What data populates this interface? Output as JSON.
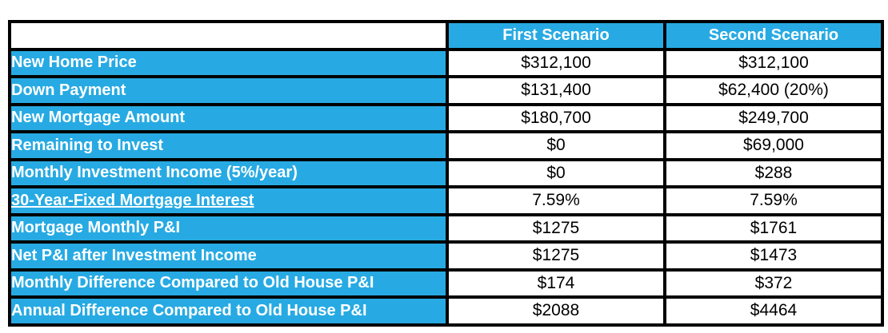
{
  "colors": {
    "accent_blue": "#27AAE3",
    "border_black": "#000000",
    "cell_bg": "#FFFFFF",
    "header_text": "#FFFFFF",
    "value_text": "#000000"
  },
  "chart_data": {
    "type": "table",
    "title": "",
    "columns": [
      "First Scenario",
      "Second Scenario"
    ],
    "rows": [
      {
        "label": "New Home Price",
        "first": "$312,100",
        "second": "$312,100",
        "underline": false
      },
      {
        "label": "Down Payment",
        "first": "$131,400",
        "second": "$62,400 (20%)",
        "underline": false
      },
      {
        "label": "New Mortgage Amount",
        "first": "$180,700",
        "second": "$249,700",
        "underline": false
      },
      {
        "label": "Remaining to Invest",
        "first": "$0",
        "second": "$69,000",
        "underline": false
      },
      {
        "label": "Monthly Investment Income (5%/year)",
        "first": "$0",
        "second": "$288",
        "underline": false
      },
      {
        "label": "30-Year-Fixed Mortgage Interest",
        "first": "7.59%",
        "second": "7.59%",
        "underline": true
      },
      {
        "label": "Mortgage Monthly P&I",
        "first": "$1275",
        "second": "$1761",
        "underline": false
      },
      {
        "label": "Net P&I after Investment Income",
        "first": "$1275",
        "second": "$1473",
        "underline": false
      },
      {
        "label": "Monthly Difference Compared to Old House P&I",
        "first": "$174",
        "second": "$372",
        "underline": false
      },
      {
        "label": "Annual Difference Compared to Old House P&I",
        "first": "$2088",
        "second": "$4464",
        "underline": false
      }
    ]
  }
}
